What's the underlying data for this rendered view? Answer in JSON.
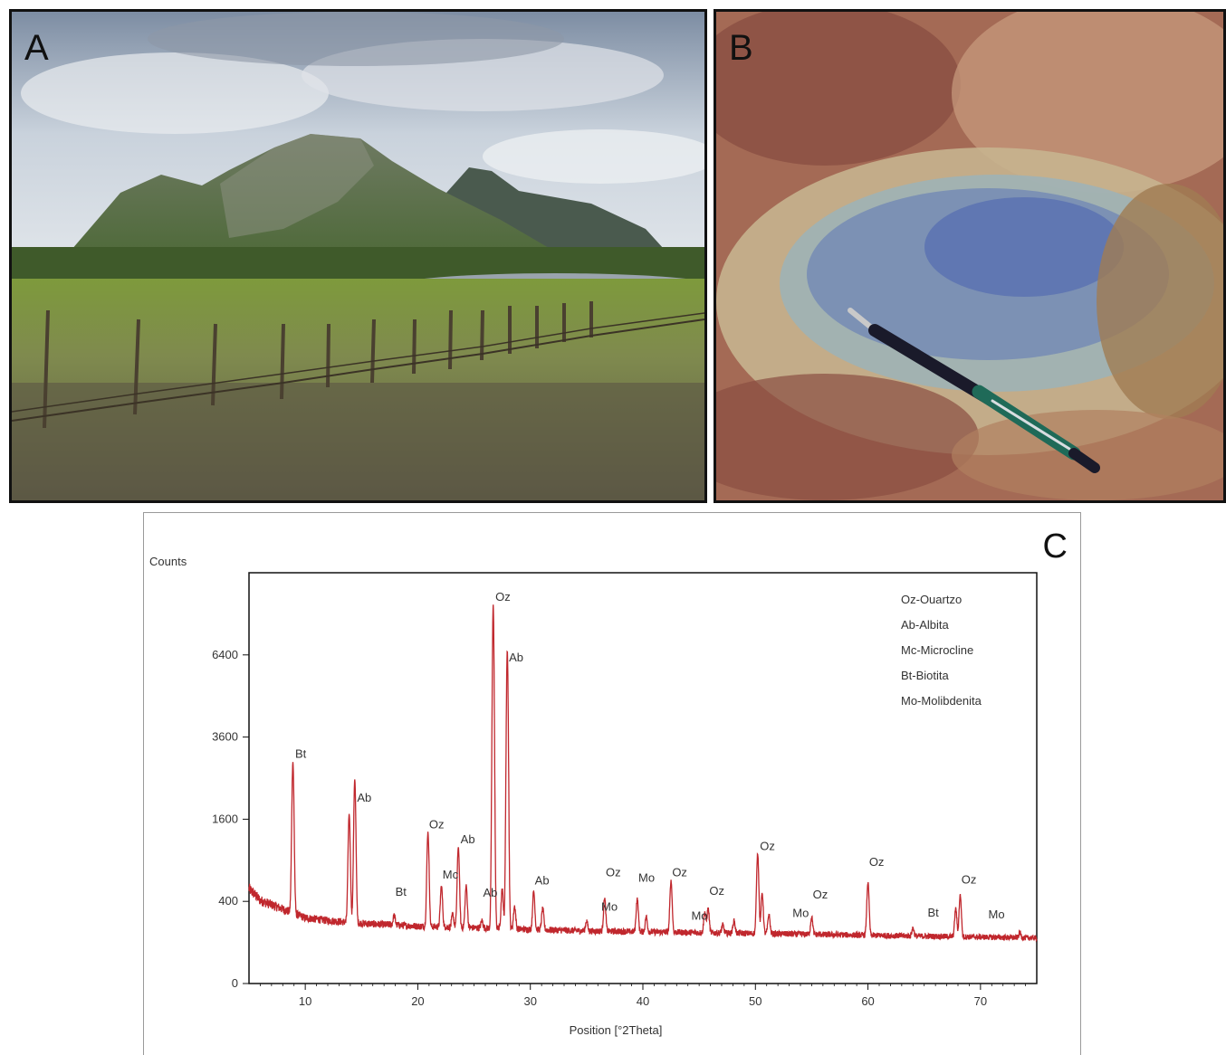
{
  "panels": {
    "a": {
      "letter": "A"
    },
    "b": {
      "letter": "B"
    },
    "c": {
      "letter": "C"
    }
  },
  "colors": {
    "spectrum": "#c0272d",
    "frame": "#111111"
  },
  "chart_data": {
    "type": "line",
    "title": "",
    "xlabel": "Position [°2Theta]",
    "ylabel": "Counts",
    "xlim": [
      5,
      75
    ],
    "ylim": [
      0,
      10000
    ],
    "y_scale": "sqrt",
    "x_ticks": [
      10,
      20,
      30,
      40,
      50,
      60,
      70
    ],
    "y_ticks": [
      0,
      400,
      1600,
      3600,
      6400
    ],
    "legend_position": "top-right",
    "legend": [
      "Oz-Ouartzo",
      "Ab-Albita",
      "Mc-Microcline",
      "Bt-Biotita",
      "Mo-Molibdenita"
    ],
    "background_trend": [
      [
        5,
        520
      ],
      [
        6,
        400
      ],
      [
        8,
        320
      ],
      [
        10,
        250
      ],
      [
        12,
        230
      ],
      [
        15,
        210
      ],
      [
        20,
        190
      ],
      [
        25,
        180
      ],
      [
        30,
        170
      ],
      [
        35,
        160
      ],
      [
        40,
        155
      ],
      [
        45,
        150
      ],
      [
        50,
        145
      ],
      [
        55,
        140
      ],
      [
        60,
        135
      ],
      [
        65,
        130
      ],
      [
        70,
        125
      ],
      [
        75,
        120
      ]
    ],
    "peaks": [
      {
        "x": 8.9,
        "y": 2900
      },
      {
        "x": 13.9,
        "y": 1700
      },
      {
        "x": 14.4,
        "y": 2450
      },
      {
        "x": 17.9,
        "y": 270
      },
      {
        "x": 18.6,
        "y": 190
      },
      {
        "x": 20.9,
        "y": 1350
      },
      {
        "x": 22.1,
        "y": 560
      },
      {
        "x": 23.1,
        "y": 280
      },
      {
        "x": 23.6,
        "y": 1100
      },
      {
        "x": 24.3,
        "y": 560
      },
      {
        "x": 25.7,
        "y": 230
      },
      {
        "x": 26.7,
        "y": 8500
      },
      {
        "x": 27.5,
        "y": 520
      },
      {
        "x": 27.95,
        "y": 6550
      },
      {
        "x": 28.6,
        "y": 350
      },
      {
        "x": 30.3,
        "y": 500
      },
      {
        "x": 31.1,
        "y": 330
      },
      {
        "x": 35.0,
        "y": 230
      },
      {
        "x": 36.6,
        "y": 430
      },
      {
        "x": 39.5,
        "y": 420
      },
      {
        "x": 40.3,
        "y": 260
      },
      {
        "x": 42.5,
        "y": 620
      },
      {
        "x": 45.5,
        "y": 300
      },
      {
        "x": 45.8,
        "y": 330
      },
      {
        "x": 47.1,
        "y": 200
      },
      {
        "x": 48.1,
        "y": 230
      },
      {
        "x": 50.2,
        "y": 1000
      },
      {
        "x": 50.6,
        "y": 480
      },
      {
        "x": 51.2,
        "y": 280
      },
      {
        "x": 55.0,
        "y": 260
      },
      {
        "x": 60.0,
        "y": 600
      },
      {
        "x": 64.0,
        "y": 180
      },
      {
        "x": 67.8,
        "y": 330
      },
      {
        "x": 68.2,
        "y": 460
      },
      {
        "x": 73.5,
        "y": 150
      }
    ],
    "annotations": [
      {
        "text": "Bt",
        "x": 9.1,
        "y": 2950
      },
      {
        "text": "Ab",
        "x": 14.6,
        "y": 1900
      },
      {
        "text": "Bt",
        "x": 18.0,
        "y": 430
      },
      {
        "text": "Oz",
        "x": 21.0,
        "y": 1380
      },
      {
        "text": "Mc",
        "x": 22.2,
        "y": 620
      },
      {
        "text": "Ab",
        "x": 23.8,
        "y": 1120
      },
      {
        "text": "Ab",
        "x": 25.8,
        "y": 420
      },
      {
        "text": "Oz",
        "x": 26.9,
        "y": 8550
      },
      {
        "text": "Ab",
        "x": 28.1,
        "y": 6050
      },
      {
        "text": "Ab",
        "x": 30.4,
        "y": 550
      },
      {
        "text": "Oz",
        "x": 36.7,
        "y": 650
      },
      {
        "text": "Mo",
        "x": 36.3,
        "y": 290
      },
      {
        "text": "Mo",
        "x": 39.6,
        "y": 580
      },
      {
        "text": "Oz",
        "x": 42.6,
        "y": 650
      },
      {
        "text": "Mo",
        "x": 44.3,
        "y": 220
      },
      {
        "text": "Oz",
        "x": 45.9,
        "y": 440
      },
      {
        "text": "Oz",
        "x": 50.4,
        "y": 1010
      },
      {
        "text": "Mo",
        "x": 53.3,
        "y": 240
      },
      {
        "text": "Oz",
        "x": 55.1,
        "y": 400
      },
      {
        "text": "Oz",
        "x": 60.1,
        "y": 780
      },
      {
        "text": "Bt",
        "x": 65.3,
        "y": 245
      },
      {
        "text": "Oz",
        "x": 68.3,
        "y": 560
      },
      {
        "text": "Mo",
        "x": 70.7,
        "y": 230
      }
    ]
  }
}
